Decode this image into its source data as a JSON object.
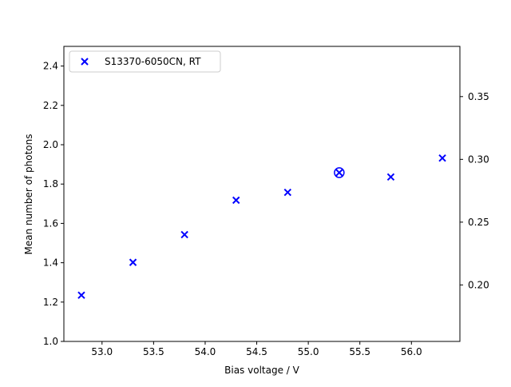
{
  "chart_data": {
    "type": "scatter",
    "xlabel": "Bias voltage / V",
    "ylabel": "Mean number of photons",
    "xlim": [
      52.63,
      56.47
    ],
    "ylim": [
      1.0,
      2.5
    ],
    "y2lim": [
      0.155,
      0.39
    ],
    "xticks": [
      "53.0",
      "53.5",
      "54.0",
      "54.5",
      "55.0",
      "55.5",
      "56.0"
    ],
    "yticks": [
      "1.0",
      "1.2",
      "1.4",
      "1.6",
      "1.8",
      "2.0",
      "2.2",
      "2.4"
    ],
    "y2ticks": [
      "0.20",
      "0.25",
      "0.30",
      "0.35"
    ],
    "grid": false,
    "legend_position": "upper-left",
    "marker_color": "#0000ff",
    "series": [
      {
        "name": "S13370-6050CN, RT",
        "marker": "x",
        "x": [
          52.8,
          53.3,
          53.8,
          54.3,
          54.8,
          55.3,
          55.8,
          56.3
        ],
        "y": [
          1.235,
          1.402,
          1.543,
          1.718,
          1.758,
          1.858,
          1.836,
          1.932
        ]
      }
    ],
    "highlighted_point": {
      "x": 55.3,
      "y": 1.858,
      "marker": "circle"
    }
  }
}
